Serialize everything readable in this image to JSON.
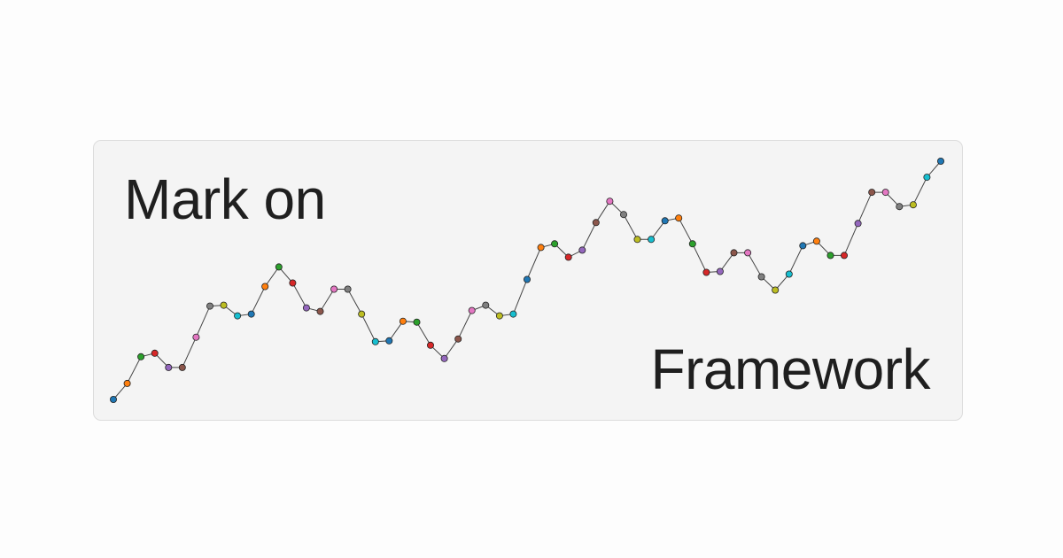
{
  "logo": {
    "line1": "Mark on",
    "line2": "Framework"
  },
  "colors": {
    "background": "#fdfdfd",
    "card": "#f4f4f4",
    "card_border": "#dcdcdc",
    "text": "#1f1f1f",
    "line": "#444444",
    "palette": [
      "#1f77b4",
      "#ff7f0e",
      "#2ca02c",
      "#d62728",
      "#9467bd",
      "#8c564b",
      "#e377c2",
      "#7f7f7f",
      "#bcbd22",
      "#17becf"
    ]
  },
  "chart_data": {
    "type": "line",
    "markers": true,
    "grid": false,
    "x": [
      0,
      1,
      2,
      3,
      4,
      5,
      6,
      7,
      8,
      9,
      10,
      11,
      12,
      13,
      14,
      15,
      16,
      17,
      18,
      19,
      20,
      21,
      22,
      23,
      24,
      25,
      26,
      27,
      28,
      29,
      30,
      31,
      32,
      33,
      34,
      35,
      36,
      37,
      38,
      39,
      40,
      41,
      42,
      43,
      44,
      45,
      46,
      47,
      48,
      49,
      50,
      51,
      52,
      53,
      54,
      55,
      56,
      57,
      58,
      59,
      60
    ],
    "values": [
      0,
      18,
      48,
      52,
      36,
      36,
      70,
      105,
      106,
      94,
      96,
      127,
      149,
      131,
      103,
      99,
      124,
      124,
      96,
      65,
      66,
      88,
      87,
      61,
      46,
      68,
      100,
      106,
      94,
      96,
      135,
      171,
      175,
      160,
      168,
      199,
      223,
      208,
      180,
      180,
      201,
      204,
      175,
      143,
      144,
      165,
      165,
      138,
      123,
      141,
      173,
      178,
      162,
      162,
      198,
      233,
      233,
      217,
      219,
      250,
      268
    ]
  }
}
